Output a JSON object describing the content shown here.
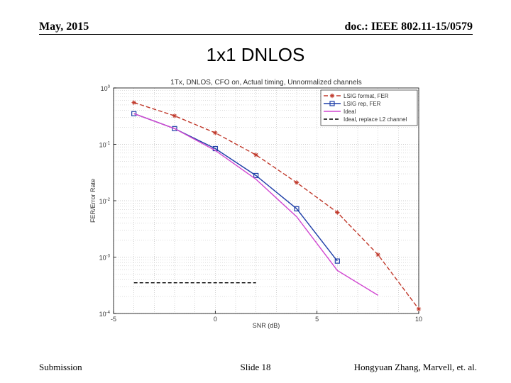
{
  "header": {
    "left": "May, 2015",
    "right": "doc.: IEEE 802.11-15/0579"
  },
  "slide_title": "1x1 DNLOS",
  "footer": {
    "left": "Submission",
    "center": "Slide 18",
    "right": "Hongyuan Zhang,  Marvell, et. al."
  },
  "chart_data": {
    "type": "line",
    "title": "1Tx, DNLOS, CFO on, Actual timing, Unnormalized channels",
    "xlabel": "SNR (dB)",
    "ylabel": "FER/Error Rate",
    "xlim": [
      -5,
      10
    ],
    "ylim": [
      0.0001,
      1
    ],
    "y_scale": "log",
    "x_ticks": [
      -5,
      0,
      5,
      10
    ],
    "x_tick_labels": [
      "-5",
      "0",
      "5",
      "10"
    ],
    "y_ticks": [
      0.0001,
      0.001,
      0.01,
      0.1,
      1
    ],
    "y_tick_bases": [
      "10",
      "10",
      "10",
      "10",
      "10"
    ],
    "y_tick_exps": [
      "-4",
      "-3",
      "-2",
      "-1",
      "0"
    ],
    "grid": true,
    "legend_position": "top-right",
    "series": [
      {
        "name": "LSIG format, FER",
        "color": "#c0392b",
        "dash": "6,3",
        "marker": "star",
        "x": [
          -4,
          -2,
          0,
          2,
          4,
          6,
          8,
          10
        ],
        "y": [
          0.55,
          0.32,
          0.16,
          0.065,
          0.021,
          0.0062,
          0.0011,
          0.00012
        ]
      },
      {
        "name": "LSIG rep, FER",
        "color": "#1f3fa8",
        "dash": "",
        "marker": "square",
        "x": [
          -4,
          -2,
          0,
          2,
          4,
          6
        ],
        "y": [
          0.35,
          0.19,
          0.084,
          0.028,
          0.0072,
          0.00085
        ]
      },
      {
        "name": "Ideal",
        "color": "#d147d1",
        "dash": "",
        "marker": "none",
        "x": [
          -4,
          -2,
          0,
          2,
          4,
          6,
          8
        ],
        "y": [
          0.35,
          0.19,
          0.078,
          0.024,
          0.0052,
          0.00058,
          0.00021
        ]
      },
      {
        "name": "Ideal, replace L2 channel",
        "color": "#000000",
        "dash": "5,3",
        "marker": "none",
        "x": [
          -4,
          2
        ],
        "y": [
          0.00035,
          0.00035
        ]
      }
    ]
  }
}
